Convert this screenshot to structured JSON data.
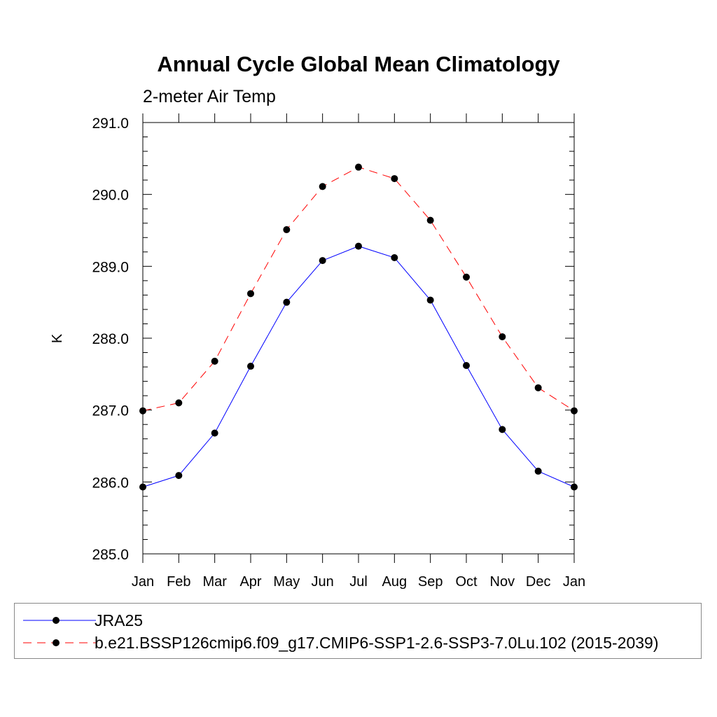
{
  "chart_data": {
    "type": "line",
    "title": "Annual Cycle Global Mean Climatology",
    "subtitle": "2-meter Air Temp",
    "ylabel": "K",
    "xlabel": "",
    "categories": [
      "Jan",
      "Feb",
      "Mar",
      "Apr",
      "May",
      "Jun",
      "Jul",
      "Aug",
      "Sep",
      "Oct",
      "Nov",
      "Dec",
      "Jan"
    ],
    "ylim": [
      285.0,
      291.0
    ],
    "yticks": [
      "285.0",
      "286.0",
      "287.0",
      "288.0",
      "289.0",
      "290.0",
      "291.0"
    ],
    "grid": false,
    "legend_position": "bottom",
    "series": [
      {
        "name": "JRA25",
        "color": "#0000ff",
        "dash": "solid",
        "marker": "filled-circle",
        "values": [
          285.93,
          286.09,
          286.68,
          287.61,
          288.5,
          289.08,
          289.28,
          289.12,
          288.53,
          287.62,
          286.73,
          286.15,
          285.93
        ]
      },
      {
        "name": "b.e21.BSSP126cmip6.f09_g17.CMIP6-SSP1-2.6-SSP3-7.0Lu.102 (2015-2039)",
        "color": "#ff0000",
        "dash": "dashed",
        "marker": "filled-circle",
        "values": [
          286.99,
          287.1,
          287.68,
          288.62,
          289.51,
          290.11,
          290.38,
          290.22,
          289.64,
          288.85,
          288.02,
          287.31,
          286.99
        ]
      }
    ]
  }
}
